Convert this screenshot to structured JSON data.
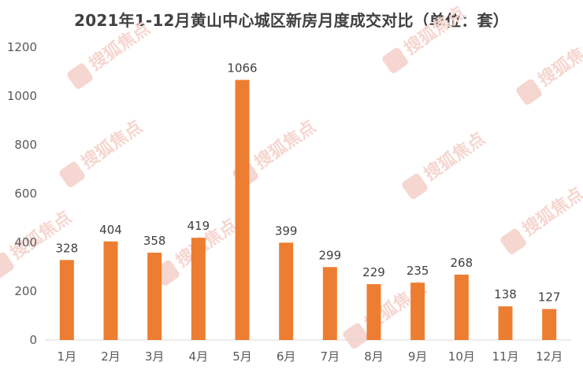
{
  "chart_data": {
    "type": "bar",
    "title": "2021年1-12月黄山中心城区新房月度成交对比（单位：套）",
    "categories": [
      "1月",
      "2月",
      "3月",
      "4月",
      "5月",
      "6月",
      "7月",
      "8月",
      "9月",
      "10月",
      "11月",
      "12月"
    ],
    "values": [
      328,
      404,
      358,
      419,
      1066,
      399,
      299,
      229,
      235,
      268,
      138,
      127
    ],
    "xlabel": "",
    "ylabel": "",
    "ylim": [
      0,
      1200
    ],
    "yticks": [
      0,
      200,
      400,
      600,
      800,
      1000,
      1200
    ],
    "grid": false,
    "legend": "none",
    "colors": {
      "bar": "#ED7D31",
      "axis": "#d9d9d9",
      "text": "#595959",
      "watermark": "#f6d6d0"
    }
  },
  "watermark": {
    "text": "搜狐焦点",
    "icon": "house-logo-icon"
  }
}
